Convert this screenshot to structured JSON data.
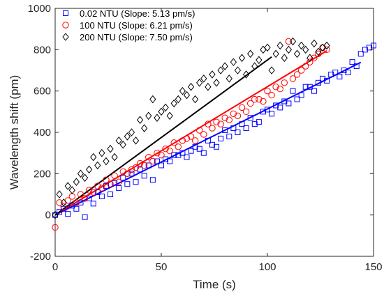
{
  "chart_data": {
    "type": "scatter",
    "xlabel": "Time (s)",
    "ylabel": "Wavelength shift (pm)",
    "xlim": [
      0,
      150
    ],
    "ylim": [
      -200,
      1000
    ],
    "xticks": [
      0,
      50,
      100,
      150
    ],
    "yticks": [
      -200,
      0,
      200,
      400,
      600,
      800,
      1000
    ],
    "legend_position": "top-left",
    "grid": false,
    "series": [
      {
        "name": "0.02 NTU (Slope: 5.13 pm/s)",
        "marker": "square",
        "color": "#0000ff",
        "slope": 5.13,
        "fit_x": [
          0,
          144
        ],
        "x": [
          0,
          2,
          4,
          6,
          8,
          10,
          12,
          14,
          16,
          18,
          20,
          22,
          24,
          26,
          28,
          30,
          32,
          34,
          36,
          38,
          40,
          42,
          44,
          46,
          48,
          50,
          52,
          54,
          56,
          58,
          60,
          62,
          64,
          66,
          68,
          70,
          72,
          74,
          76,
          78,
          80,
          82,
          84,
          86,
          88,
          90,
          92,
          94,
          96,
          98,
          100,
          102,
          104,
          106,
          108,
          110,
          112,
          114,
          116,
          118,
          120,
          122,
          124,
          126,
          128,
          130,
          132,
          134,
          136,
          138,
          140,
          142,
          144,
          146,
          148,
          150
        ],
        "y": [
          0,
          15,
          30,
          5,
          45,
          30,
          60,
          -10,
          80,
          55,
          110,
          90,
          140,
          100,
          155,
          130,
          180,
          150,
          200,
          160,
          220,
          190,
          240,
          170,
          260,
          240,
          270,
          260,
          290,
          290,
          300,
          280,
          310,
          330,
          320,
          300,
          360,
          340,
          330,
          370,
          410,
          380,
          420,
          400,
          440,
          420,
          470,
          440,
          450,
          500,
          510,
          490,
          530,
          520,
          550,
          540,
          600,
          560,
          580,
          620,
          620,
          600,
          640,
          660,
          650,
          680,
          690,
          670,
          700,
          690,
          740,
          720,
          780,
          800,
          810,
          820
        ]
      },
      {
        "name": "100 NTU (Slope: 6.21 pm/s)",
        "marker": "circle",
        "color": "#ff0000",
        "slope": 6.21,
        "fit_x": [
          0,
          128
        ],
        "x": [
          0,
          2,
          4,
          6,
          8,
          10,
          12,
          14,
          16,
          18,
          20,
          22,
          24,
          26,
          28,
          30,
          32,
          34,
          36,
          38,
          40,
          42,
          44,
          46,
          48,
          50,
          52,
          54,
          56,
          58,
          60,
          62,
          64,
          66,
          68,
          70,
          72,
          74,
          76,
          78,
          80,
          82,
          84,
          86,
          88,
          90,
          92,
          94,
          96,
          98,
          100,
          102,
          104,
          106,
          108,
          110,
          112,
          114,
          116,
          118,
          120,
          122,
          124,
          126,
          128
        ],
        "y": [
          -60,
          60,
          40,
          70,
          90,
          60,
          100,
          80,
          120,
          110,
          140,
          130,
          170,
          150,
          190,
          160,
          210,
          200,
          220,
          230,
          250,
          240,
          280,
          260,
          300,
          290,
          320,
          310,
          350,
          330,
          360,
          370,
          380,
          360,
          410,
          390,
          440,
          420,
          450,
          440,
          470,
          460,
          490,
          480,
          520,
          500,
          540,
          560,
          560,
          550,
          600,
          580,
          620,
          610,
          640,
          840,
          660,
          680,
          700,
          720,
          740,
          760,
          780,
          810,
          800
        ]
      },
      {
        "name": "200 NTU (Slope: 7.50 pm/s)",
        "marker": "diamond",
        "color": "#000000",
        "slope": 7.5,
        "fit_x": [
          0,
          102
        ],
        "x": [
          0,
          2,
          4,
          6,
          8,
          10,
          12,
          14,
          16,
          18,
          20,
          22,
          24,
          26,
          28,
          30,
          32,
          34,
          36,
          38,
          40,
          42,
          44,
          46,
          48,
          50,
          52,
          54,
          56,
          58,
          60,
          62,
          64,
          66,
          68,
          70,
          72,
          74,
          76,
          78,
          80,
          82,
          84,
          86,
          88,
          90,
          92,
          94,
          96,
          98,
          100,
          102,
          104,
          106,
          108,
          110,
          112,
          114,
          116,
          118,
          120,
          122,
          124,
          126,
          128
        ],
        "y": [
          0,
          100,
          60,
          140,
          120,
          160,
          200,
          180,
          220,
          280,
          240,
          300,
          260,
          320,
          280,
          360,
          340,
          380,
          400,
          360,
          460,
          420,
          480,
          560,
          470,
          500,
          520,
          480,
          540,
          560,
          600,
          580,
          620,
          560,
          640,
          660,
          620,
          680,
          640,
          700,
          720,
          660,
          740,
          700,
          760,
          680,
          780,
          720,
          750,
          800,
          810,
          700,
          780,
          820,
          760,
          800,
          840,
          780,
          820,
          800,
          760,
          830,
          790,
          810,
          820
        ]
      }
    ]
  }
}
